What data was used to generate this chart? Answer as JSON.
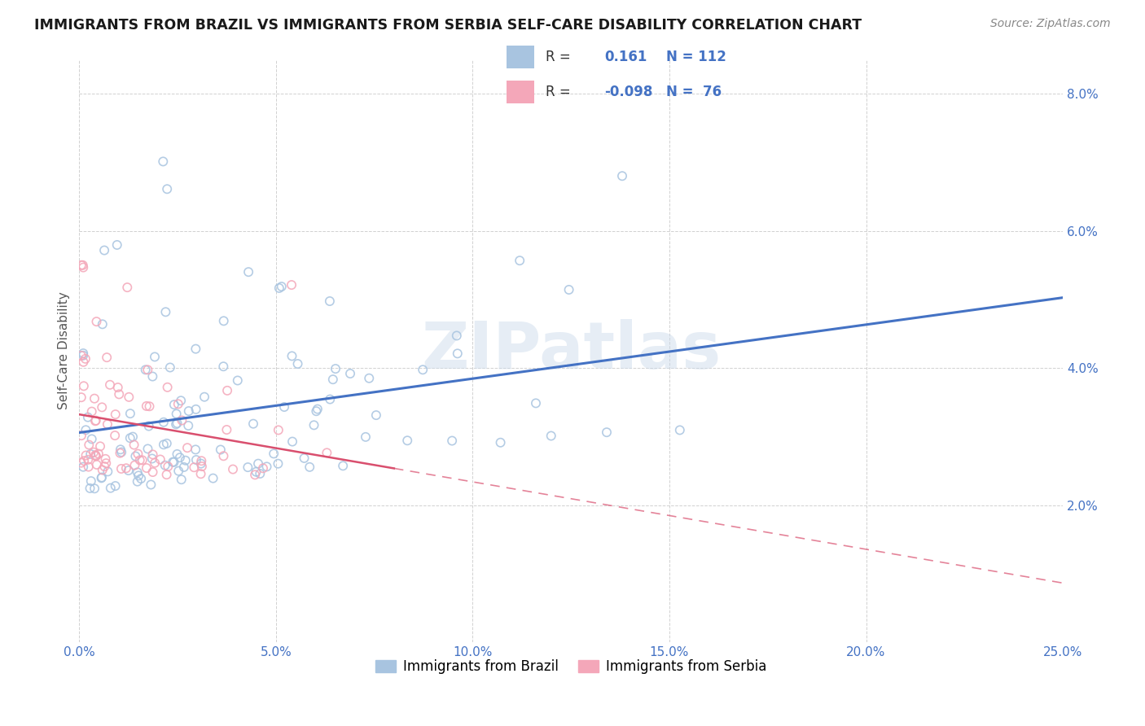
{
  "title": "IMMIGRANTS FROM BRAZIL VS IMMIGRANTS FROM SERBIA SELF-CARE DISABILITY CORRELATION CHART",
  "source": "Source: ZipAtlas.com",
  "ylabel": "Self-Care Disability",
  "brazil_color": "#a8c4e0",
  "serbia_color": "#f4a7b9",
  "brazil_line_color": "#4472c4",
  "serbia_line_color": "#d94f6e",
  "brazil_R": 0.161,
  "brazil_N": 112,
  "serbia_R": -0.098,
  "serbia_N": 76,
  "xlim": [
    0.0,
    0.25
  ],
  "ylim": [
    0.0,
    0.085
  ],
  "xticks": [
    0.0,
    0.05,
    0.1,
    0.15,
    0.2,
    0.25
  ],
  "xtick_labels": [
    "0.0%",
    "5.0%",
    "10.0%",
    "15.0%",
    "20.0%",
    "25.0%"
  ],
  "yticks": [
    0.0,
    0.02,
    0.04,
    0.06,
    0.08
  ],
  "ytick_labels": [
    "",
    "2.0%",
    "4.0%",
    "6.0%",
    "8.0%"
  ],
  "tick_color": "#4472c4",
  "watermark": "ZIPatlas",
  "legend_brazil": "Immigrants from Brazil",
  "legend_serbia": "Immigrants from Serbia"
}
